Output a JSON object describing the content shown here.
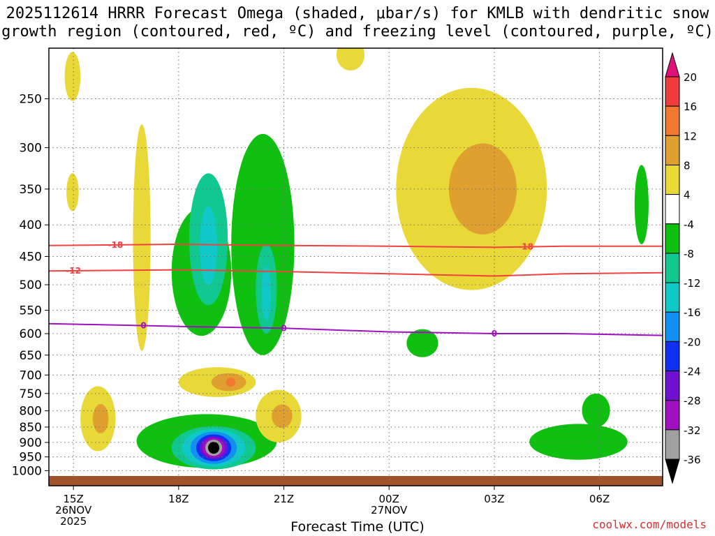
{
  "title_line1": "2025112614 HRRR Forecast Omega (shaded, μbar/s) for KMLB with dendritic snow",
  "title_line2": "growth region (contoured, red, ºC) and freezing level (contoured, purple, ºC)",
  "credit": "coolwx.com/models",
  "chart_data": {
    "type": "contour",
    "title": "2025112614 HRRR Forecast Omega (shaded, μbar/s) for KMLB with dendritic snow growth region (contoured, red, ºC) and freezing level (contoured, purple, ºC)",
    "xlabel": "Forecast Time (UTC)",
    "ylabel": "",
    "x_ticks": [
      {
        "label": "15Z",
        "sub1": "26NOV",
        "sub2": "2025",
        "hour": 0
      },
      {
        "label": "18Z",
        "sub1": "",
        "sub2": "",
        "hour": 3
      },
      {
        "label": "21Z",
        "sub1": "",
        "sub2": "",
        "hour": 6
      },
      {
        "label": "00Z",
        "sub1": "27NOV",
        "sub2": "",
        "hour": 9
      },
      {
        "label": "03Z",
        "sub1": "",
        "sub2": "",
        "hour": 12
      },
      {
        "label": "06Z",
        "sub1": "",
        "sub2": "",
        "hour": 15
      }
    ],
    "y_ticks": [
      250,
      300,
      350,
      400,
      450,
      500,
      550,
      600,
      650,
      700,
      750,
      800,
      850,
      900,
      950,
      1000
    ],
    "y_range_hpa": [
      200,
      1020
    ],
    "x_range_hours": [
      -0.7,
      16.8
    ],
    "y_scale": "log",
    "y_reversed": true,
    "colorbar": {
      "labels": [
        "20",
        "16",
        "12",
        "8",
        "4",
        "-4",
        "-8",
        "-12",
        "-16",
        "-20",
        "-24",
        "-28",
        "-32",
        "-36"
      ],
      "colors": [
        "#e0107a",
        "#f03c3c",
        "#f07830",
        "#e0a030",
        "#e8d838",
        "#ffffff",
        "#10c010",
        "#10c890",
        "#10c8c8",
        "#1090f0",
        "#1030f0",
        "#7010d0",
        "#a010c0",
        "#a0a0a0",
        "#000000"
      ]
    },
    "contours": [
      {
        "name": "-18",
        "color": "#f04040",
        "label_hours": [
          1.2,
          12.9
        ],
        "levels_hpa": [
          [
            -0.7,
            432
          ],
          [
            3,
            430
          ],
          [
            6,
            432
          ],
          [
            9,
            433
          ],
          [
            12,
            435
          ],
          [
            14,
            433
          ],
          [
            16.8,
            433
          ]
        ]
      },
      {
        "name": "-12",
        "color": "#f04040",
        "label_hours": [
          -0.0
        ],
        "levels_hpa": [
          [
            -0.7,
            475
          ],
          [
            3,
            473
          ],
          [
            6,
            476
          ],
          [
            9,
            480
          ],
          [
            12,
            484
          ],
          [
            14,
            480
          ],
          [
            16.8,
            478
          ]
        ]
      },
      {
        "name": "0",
        "color": "#a010c0",
        "label_hours": [
          2.0,
          6.0,
          12.0
        ],
        "levels_hpa": [
          [
            -0.7,
            578
          ],
          [
            3,
            584
          ],
          [
            6,
            588
          ],
          [
            9,
            596
          ],
          [
            12,
            600
          ],
          [
            14,
            600
          ],
          [
            16.8,
            604
          ]
        ]
      }
    ],
    "shaded_regions": [
      {
        "value_range": "4 to 8",
        "x_hours": [
          -0.25,
          0.2
        ],
        "p_hpa": [
          210,
          252
        ]
      },
      {
        "value_range": "4 to 8",
        "x_hours": [
          -0.2,
          0.15
        ],
        "p_hpa": [
          330,
          380
        ]
      },
      {
        "value_range": "4 to 8",
        "x_hours": [
          1.7,
          2.2
        ],
        "p_hpa": [
          275,
          640
        ]
      },
      {
        "value_range": "-4 to -8",
        "x_hours": [
          2.8,
          4.5
        ],
        "p_hpa": [
          375,
          605
        ]
      },
      {
        "value_range": "-8 to -16",
        "x_hours": [
          3.3,
          4.4
        ],
        "p_hpa": [
          330,
          540
        ]
      },
      {
        "value_range": "-4 to -8",
        "x_hours": [
          4.5,
          6.3
        ],
        "p_hpa": [
          285,
          650
        ]
      },
      {
        "value_range": "-8 to -16",
        "x_hours": [
          5.2,
          5.8
        ],
        "p_hpa": [
          430,
          600
        ]
      },
      {
        "value_range": "4 to 12",
        "x_hours": [
          0.2,
          1.2
        ],
        "p_hpa": [
          730,
          930
        ]
      },
      {
        "value_range": "4 to 16",
        "x_hours": [
          3.0,
          5.2
        ],
        "p_hpa": [
          680,
          760
        ]
      },
      {
        "value_range": "-4 to -36",
        "x_hours": [
          1.8,
          5.8
        ],
        "p_hpa": [
          810,
          990
        ]
      },
      {
        "value_range": "4 to 12",
        "x_hours": [
          5.2,
          6.5
        ],
        "p_hpa": [
          740,
          900
        ]
      },
      {
        "value_range": "4 to 12",
        "x_hours": [
          9.2,
          13.5
        ],
        "p_hpa": [
          240,
          510
        ]
      },
      {
        "value_range": "4 to 8",
        "x_hours": [
          7.5,
          8.3
        ],
        "p_hpa": [
          200,
          225
        ]
      },
      {
        "value_range": "-4 to -8",
        "x_hours": [
          9.5,
          10.4
        ],
        "p_hpa": [
          590,
          655
        ]
      },
      {
        "value_range": "-4 to -8",
        "x_hours": [
          13.0,
          15.8
        ],
        "p_hpa": [
          840,
          960
        ]
      },
      {
        "value_range": "-4 to -8",
        "x_hours": [
          14.5,
          15.3
        ],
        "p_hpa": [
          750,
          850
        ]
      },
      {
        "value_range": "-4 to -8",
        "x_hours": [
          16.0,
          16.4
        ],
        "p_hpa": [
          320,
          430
        ]
      }
    ]
  }
}
